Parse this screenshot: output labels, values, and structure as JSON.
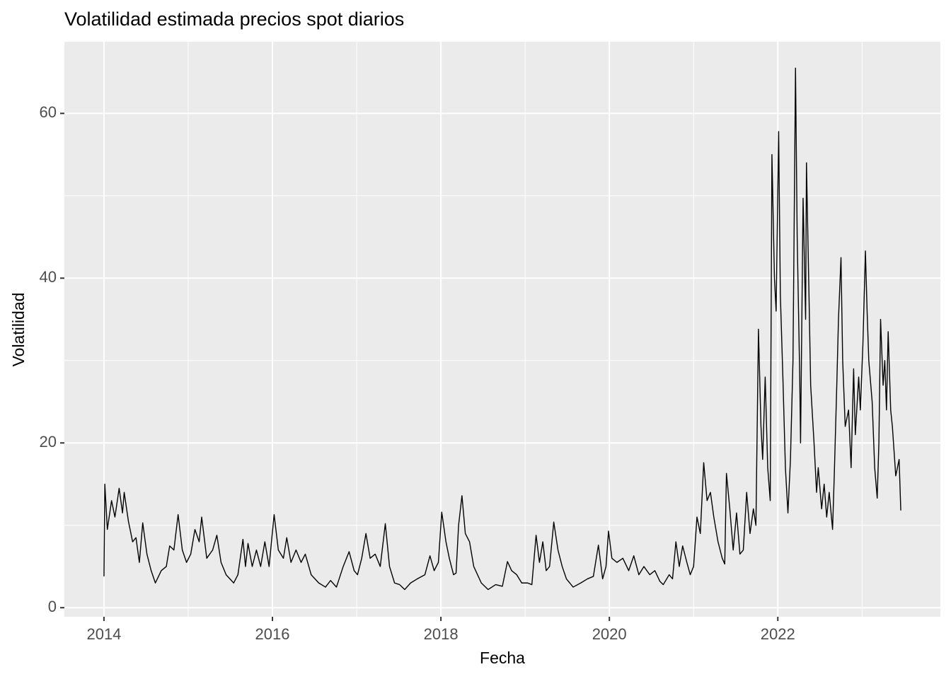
{
  "chart_data": {
    "type": "line",
    "title": "Volatilidad estimada precios spot diarios",
    "x_label": "Fecha",
    "y_label": "Volatilidad",
    "xlim": [
      2013.53,
      2023.93
    ],
    "ylim": [
      -1.1,
      68.7
    ],
    "xticks": [
      2014,
      2016,
      2018,
      2020,
      2022
    ],
    "yticks": [
      0,
      20,
      40,
      60
    ],
    "grid": true,
    "x": [
      2014.0,
      2014.01,
      2014.04,
      2014.09,
      2014.13,
      2014.18,
      2014.22,
      2014.24,
      2014.29,
      2014.34,
      2014.38,
      2014.42,
      2014.46,
      2014.51,
      2014.56,
      2014.61,
      2014.68,
      2014.74,
      2014.78,
      2014.83,
      2014.88,
      2014.93,
      2014.98,
      2015.03,
      2015.08,
      2015.13,
      2015.16,
      2015.22,
      2015.29,
      2015.34,
      2015.39,
      2015.45,
      2015.54,
      2015.59,
      2015.65,
      2015.68,
      2015.71,
      2015.76,
      2015.81,
      2015.86,
      2015.91,
      2015.96,
      2016.02,
      2016.07,
      2016.13,
      2016.17,
      2016.22,
      2016.28,
      2016.34,
      2016.39,
      2016.46,
      2016.55,
      2016.63,
      2016.69,
      2016.76,
      2016.84,
      2016.91,
      2016.97,
      2017.01,
      2017.06,
      2017.11,
      2017.16,
      2017.22,
      2017.28,
      2017.34,
      2017.39,
      2017.45,
      2017.51,
      2017.57,
      2017.64,
      2017.72,
      2017.81,
      2017.87,
      2017.92,
      2017.97,
      2018.01,
      2018.06,
      2018.1,
      2018.15,
      2018.18,
      2018.21,
      2018.25,
      2018.29,
      2018.34,
      2018.39,
      2018.48,
      2018.56,
      2018.65,
      2018.73,
      2018.79,
      2018.84,
      2018.9,
      2018.96,
      2019.03,
      2019.08,
      2019.13,
      2019.17,
      2019.21,
      2019.25,
      2019.29,
      2019.34,
      2019.39,
      2019.44,
      2019.49,
      2019.57,
      2019.66,
      2019.74,
      2019.81,
      2019.87,
      2019.92,
      2019.96,
      2019.99,
      2020.03,
      2020.09,
      2020.16,
      2020.23,
      2020.29,
      2020.35,
      2020.41,
      2020.48,
      2020.54,
      2020.6,
      2020.64,
      2020.71,
      2020.75,
      2020.79,
      2020.83,
      2020.87,
      2020.92,
      2020.96,
      2021.0,
      2021.04,
      2021.08,
      2021.12,
      2021.16,
      2021.2,
      2021.24,
      2021.29,
      2021.34,
      2021.37,
      2021.39,
      2021.43,
      2021.47,
      2021.51,
      2021.55,
      2021.59,
      2021.63,
      2021.67,
      2021.71,
      2021.74,
      2021.77,
      2021.8,
      2021.82,
      2021.85,
      2021.88,
      2021.91,
      2021.93,
      2021.96,
      2021.98,
      2022.01,
      2022.03,
      2022.06,
      2022.09,
      2022.12,
      2022.15,
      2022.18,
      2022.21,
      2022.23,
      2022.26,
      2022.27,
      2022.3,
      2022.33,
      2022.34,
      2022.37,
      2022.39,
      2022.43,
      2022.46,
      2022.48,
      2022.52,
      2022.55,
      2022.58,
      2022.61,
      2022.65,
      2022.67,
      2022.7,
      2022.72,
      2022.75,
      2022.77,
      2022.8,
      2022.84,
      2022.87,
      2022.9,
      2022.92,
      2022.96,
      2022.98,
      2023.01,
      2023.04,
      2023.06,
      2023.08,
      2023.12,
      2023.15,
      2023.18,
      2023.2,
      2023.22,
      2023.25,
      2023.27,
      2023.29,
      2023.31,
      2023.34,
      2023.36,
      2023.4,
      2023.44,
      2023.46
    ],
    "series": [
      {
        "name": "Volatilidad",
        "color": "#000000",
        "values": [
          3.8,
          15,
          9.5,
          13,
          11,
          14.5,
          11.5,
          14,
          10.5,
          8,
          8.5,
          5.5,
          10.3,
          6.5,
          4.5,
          3,
          4.5,
          5,
          7.5,
          7,
          11.3,
          7,
          5.5,
          6.5,
          9.5,
          8,
          11,
          6,
          7,
          8.8,
          5.5,
          4,
          3,
          4,
          8.3,
          5,
          7.8,
          5,
          7,
          5,
          8,
          5,
          11.3,
          7,
          6,
          8.5,
          5.5,
          7,
          5.5,
          6.5,
          4,
          3,
          2.5,
          3.3,
          2.5,
          5,
          6.8,
          4.5,
          4,
          6,
          9,
          6,
          6.5,
          5,
          10.2,
          5,
          3,
          2.8,
          2.2,
          3,
          3.5,
          4,
          6.3,
          4.5,
          5.5,
          11.6,
          8,
          6,
          4,
          4.2,
          10,
          13.6,
          9,
          8,
          5,
          3,
          2.2,
          2.8,
          2.6,
          5.6,
          4.5,
          4,
          3,
          3,
          2.8,
          8.8,
          5.5,
          8,
          4.5,
          5,
          10.4,
          7,
          5,
          3.5,
          2.5,
          3,
          3.5,
          3.8,
          7.6,
          3.5,
          5,
          9.3,
          6,
          5.5,
          6,
          4.5,
          6.3,
          4,
          5,
          4,
          4.5,
          3.2,
          2.8,
          4,
          3.5,
          8,
          5,
          7.5,
          5.5,
          4,
          5,
          11,
          9,
          17.6,
          13,
          14,
          11,
          8,
          6,
          5.3,
          16.3,
          12,
          7,
          11.5,
          6.5,
          7,
          14,
          9,
          12,
          10,
          33.8,
          22,
          18,
          28,
          17,
          13,
          55,
          40,
          36,
          57.8,
          38,
          28,
          17,
          11.5,
          18,
          30,
          65.5,
          45,
          28,
          20,
          49.7,
          35,
          54,
          38,
          27,
          20,
          14,
          17,
          12,
          15,
          11,
          14,
          9.5,
          16,
          27,
          35,
          42.5,
          30,
          22,
          24,
          17,
          29,
          21,
          28,
          24,
          32,
          43.3,
          36,
          30,
          25,
          17,
          13.3,
          20,
          35,
          27,
          30,
          24,
          33.5,
          24,
          22,
          16,
          18,
          11.8
        ]
      }
    ]
  }
}
